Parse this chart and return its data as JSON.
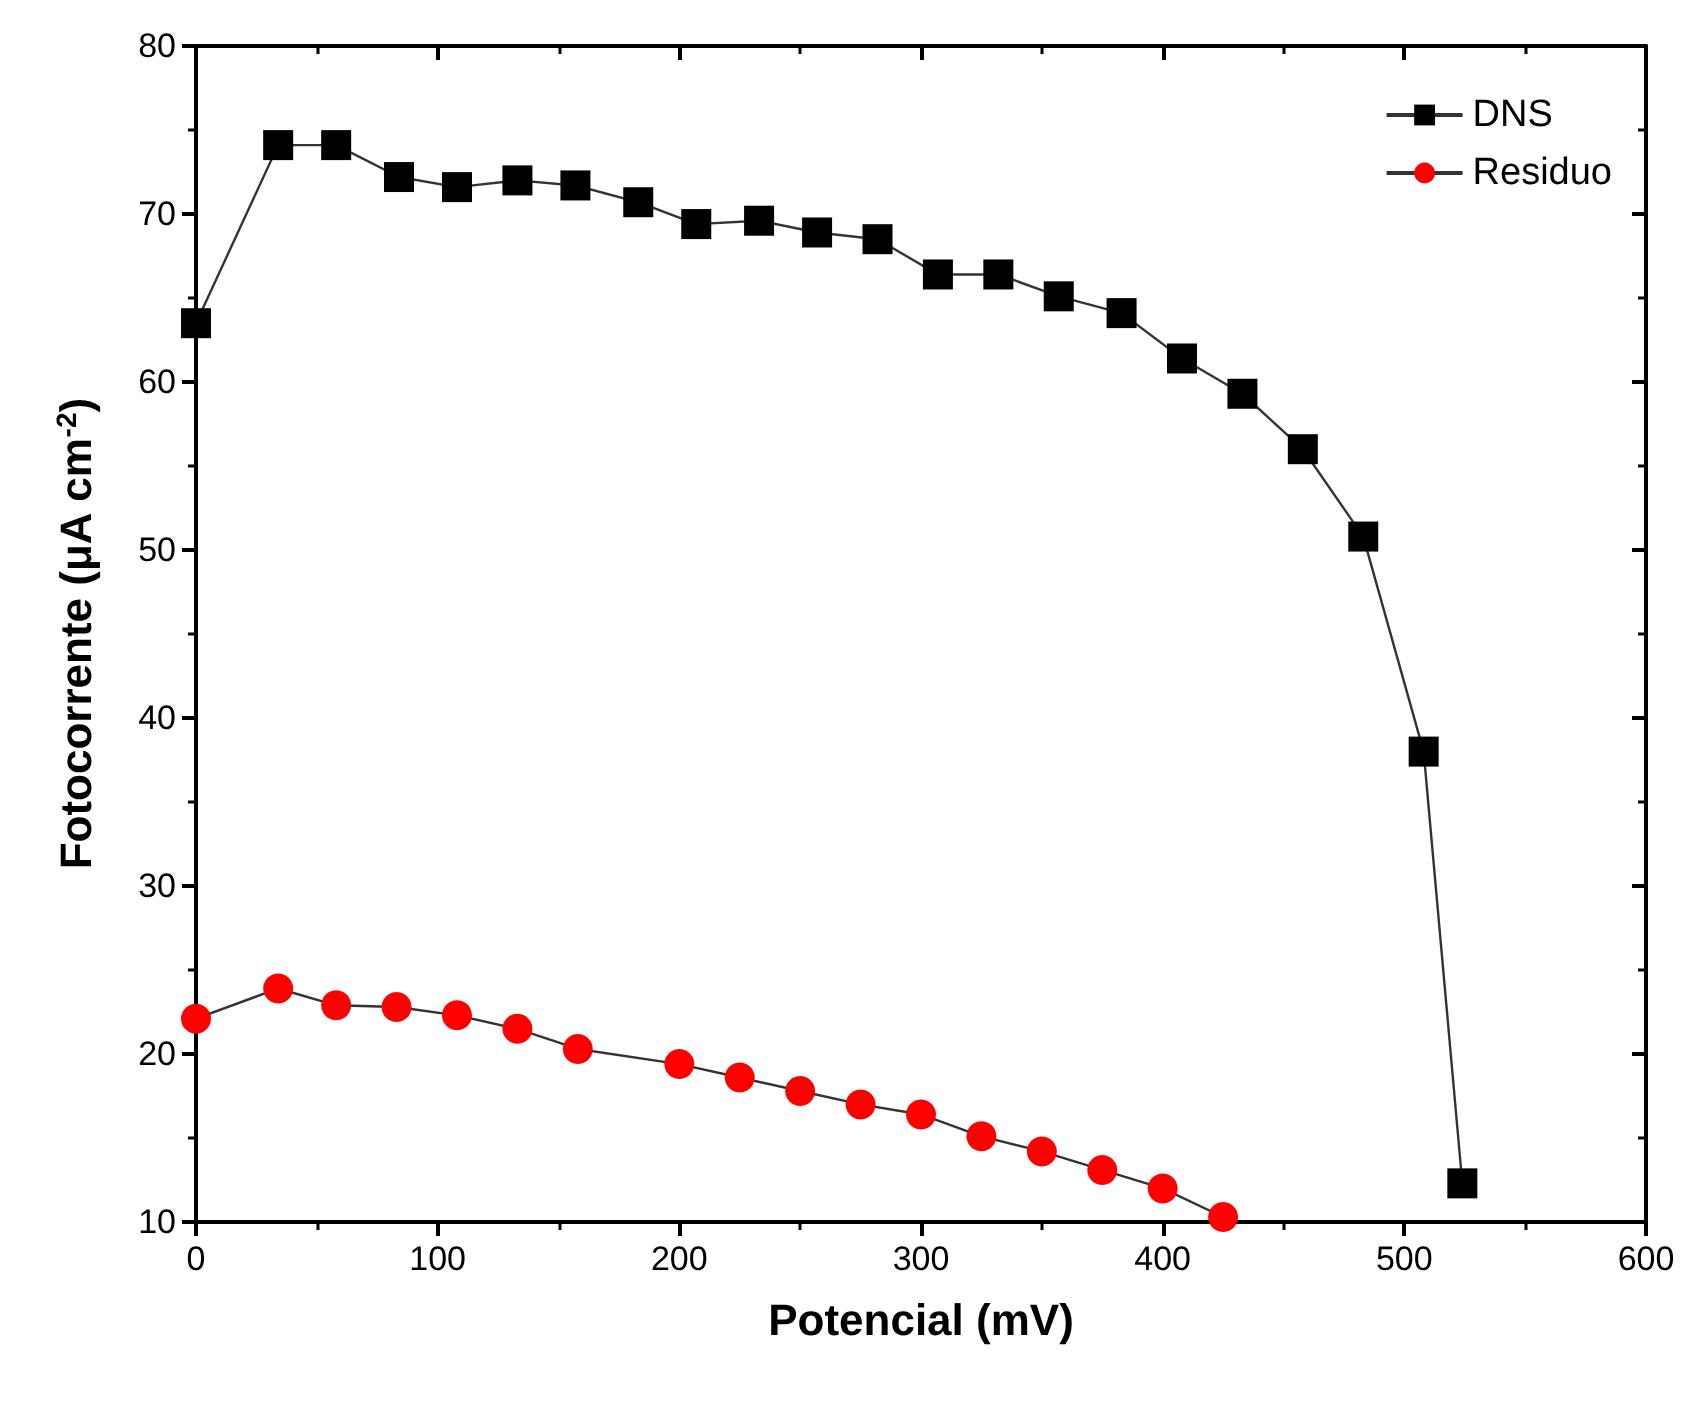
{
  "chart_data": {
    "type": "line",
    "xlabel": "Potencial (mV)",
    "ylabel": "Fotocorrente (μA cm$^{-2}$)",
    "xlim": [
      0,
      600
    ],
    "xticks": [
      0,
      100,
      200,
      300,
      400,
      500,
      600
    ],
    "ylim": [
      10,
      80
    ],
    "yticks": [
      10,
      20,
      30,
      40,
      50,
      60,
      70,
      80
    ],
    "grid": false,
    "legend": "top right",
    "series": [
      {
        "name": "DNS",
        "color": "#000000",
        "marker": "square",
        "x": [
          0,
          34,
          58,
          84,
          108,
          133,
          157,
          183,
          207,
          233,
          257,
          282,
          307,
          332,
          357,
          383,
          408,
          433,
          458,
          483,
          508,
          524
        ],
        "values": [
          63.5,
          74.1,
          74.1,
          72.2,
          71.6,
          72.0,
          71.7,
          70.7,
          69.4,
          69.6,
          68.9,
          68.5,
          66.4,
          66.4,
          65.1,
          64.1,
          61.4,
          59.3,
          56.0,
          50.8,
          38.0,
          12.3
        ]
      },
      {
        "name": "Residuo",
        "color": "#ff0000",
        "marker": "circle",
        "x": [
          0,
          34,
          58,
          83,
          108,
          133,
          158,
          200,
          225,
          250,
          275,
          300,
          325,
          350,
          375,
          400,
          425
        ],
        "values": [
          22.1,
          23.9,
          22.9,
          22.8,
          22.3,
          21.5,
          20.3,
          19.4,
          18.6,
          17.8,
          17.0,
          16.4,
          15.1,
          14.2,
          13.1,
          12.0,
          10.3
        ]
      }
    ]
  }
}
